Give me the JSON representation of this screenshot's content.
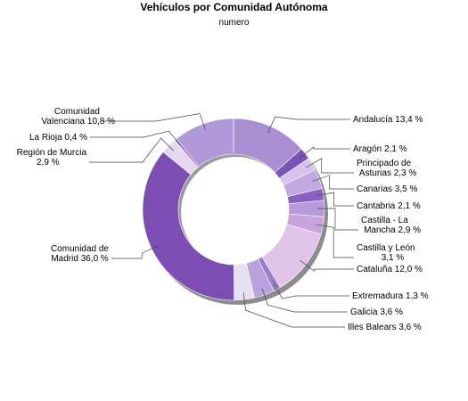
{
  "chart_data": {
    "type": "pie",
    "title": "Vehículos por Comunidad Autónoma",
    "subtitle": "numero",
    "slices": [
      {
        "label": [
          "Andalucía 13,4 %"
        ],
        "value": 13.4,
        "color": "#a98fd2"
      },
      {
        "label": [
          "Aragón 2,1 %"
        ],
        "value": 2.1,
        "color": "#7a55b8"
      },
      {
        "label": [
          "Principado de",
          "Asturias 2,3 %"
        ],
        "value": 2.3,
        "color": "#d7c4ec"
      },
      {
        "label": [
          "Canarias 3,5 %"
        ],
        "value": 3.5,
        "color": "#c2a9e1"
      },
      {
        "label": [
          "Cantabria 2,1 %"
        ],
        "value": 2.1,
        "color": "#8a5fc2"
      },
      {
        "label": [
          "Castilla - La",
          "Mancha 2,9 %"
        ],
        "value": 2.9,
        "color": "#b59bd9"
      },
      {
        "label": [
          "Castilla y León",
          "3,1 %"
        ],
        "value": 3.1,
        "color": "#c9a3dc"
      },
      {
        "label": [
          "Cataluña 12,0 %"
        ],
        "value": 12.0,
        "color": "#e1c2e8"
      },
      {
        "label": [
          "Extremadura 1,3 %"
        ],
        "value": 1.3,
        "color": "#9a7fc8"
      },
      {
        "label": [
          "Galicia 3,6 %"
        ],
        "value": 3.6,
        "color": "#b9a2dc"
      },
      {
        "label": [
          "Illes Balears 3,6 %"
        ],
        "value": 3.6,
        "color": "#e6def3"
      },
      {
        "label": [
          "Comunidad de",
          "Madrid 36,0 %"
        ],
        "value": 36.0,
        "color": "#7c4db3"
      },
      {
        "label": [
          "Región de Murcia",
          "2,9 %"
        ],
        "value": 2.9,
        "color": "#e3d8f0"
      },
      {
        "label": [
          "La Rioja 0,4 %"
        ],
        "value": 0.4,
        "color": "#8e68c4"
      },
      {
        "label": [
          "Comunidad",
          "Valenciana 10,8 %"
        ],
        "value": 10.8,
        "color": "#b198d8"
      }
    ]
  }
}
